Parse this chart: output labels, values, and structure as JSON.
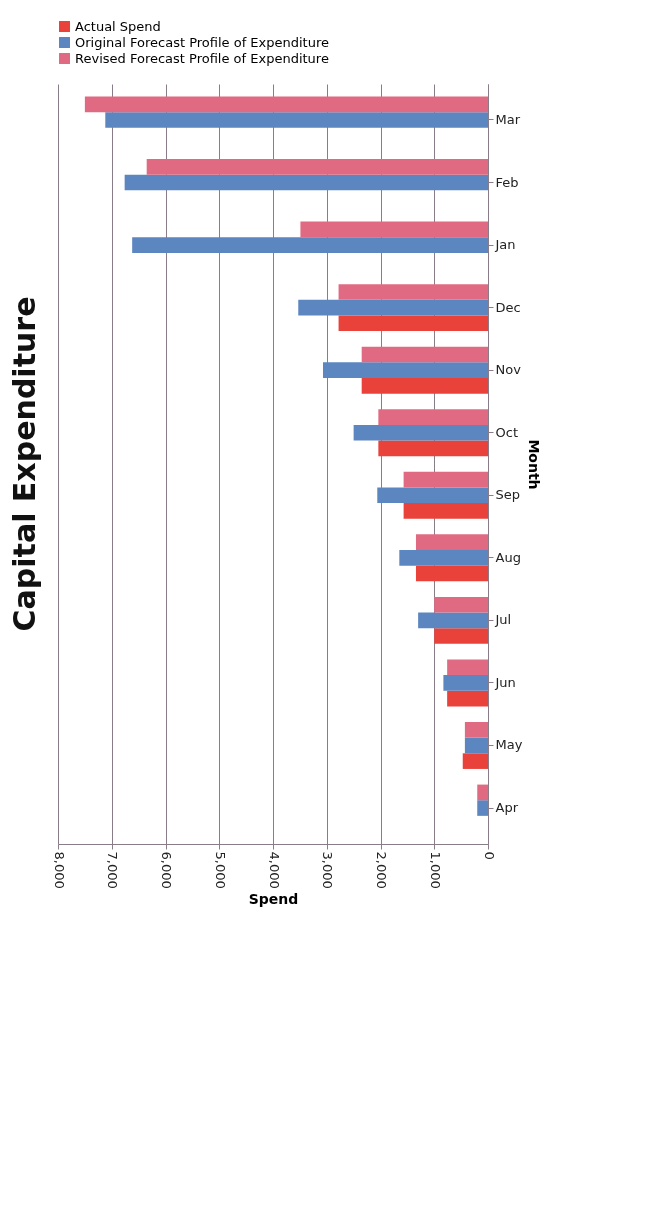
{
  "chart_data": {
    "type": "bar",
    "orientation": "horizontal",
    "title": "Capital Expenditure",
    "xlabel": "Spend",
    "ylabel": "Month",
    "categories": [
      "Mar",
      "Feb",
      "Jan",
      "Dec",
      "Nov",
      "Oct",
      "Sep",
      "Aug",
      "Jul",
      "Jun",
      "May",
      "Apr"
    ],
    "series": [
      {
        "name": "Actual Spend",
        "color": "#e8423a",
        "values": [
          null,
          null,
          null,
          2780,
          2350,
          2040,
          1570,
          1340,
          1000,
          760,
          470,
          null
        ]
      },
      {
        "name": "Original Forecast Profile of Expenditure",
        "color": "#5b86c0",
        "values": [
          7120,
          6760,
          6620,
          3530,
          3070,
          2500,
          2060,
          1650,
          1300,
          830,
          430,
          200
        ]
      },
      {
        "name": "Revised Forecast Profile of Expenditure",
        "color": "#e06a82",
        "values": [
          7500,
          6350,
          3490,
          2780,
          2350,
          2040,
          1570,
          1340,
          1000,
          760,
          430,
          200
        ]
      }
    ],
    "xlim": [
      8000,
      0
    ],
    "xticks": [
      {
        "value": 8000,
        "label": "8,000"
      },
      {
        "value": 7000,
        "label": "7,000"
      },
      {
        "value": 6000,
        "label": "6,000"
      },
      {
        "value": 5000,
        "label": "5,000"
      },
      {
        "value": 4000,
        "label": "4,000"
      },
      {
        "value": 3000,
        "label": "3,000"
      },
      {
        "value": 2000,
        "label": "2,000"
      },
      {
        "value": 1000,
        "label": "1,000"
      },
      0
    ],
    "grid": "x",
    "legend": "top"
  }
}
